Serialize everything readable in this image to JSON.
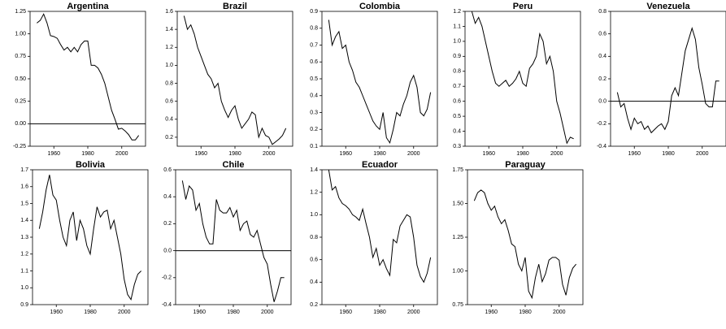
{
  "chart_data": [
    {
      "type": "line",
      "title": "Argentina",
      "x": [
        1950,
        1952,
        1954,
        1956,
        1958,
        1960,
        1962,
        1964,
        1966,
        1968,
        1970,
        1972,
        1974,
        1976,
        1978,
        1980,
        1982,
        1984,
        1986,
        1988,
        1990,
        1992,
        1994,
        1996,
        1998,
        2000,
        2002,
        2004,
        2006,
        2008,
        2010
      ],
      "values": [
        1.12,
        1.15,
        1.22,
        1.12,
        0.98,
        0.97,
        0.95,
        0.88,
        0.82,
        0.85,
        0.8,
        0.85,
        0.8,
        0.88,
        0.92,
        0.92,
        0.65,
        0.65,
        0.62,
        0.55,
        0.45,
        0.3,
        0.15,
        0.05,
        -0.06,
        -0.05,
        -0.08,
        -0.12,
        -0.18,
        -0.18,
        -0.13
      ],
      "xlim": [
        1946,
        2014
      ],
      "xticks": [
        1960,
        1980,
        2000
      ],
      "ylim": [
        -0.25,
        1.25
      ],
      "yticks": [
        -0.25,
        {
          "value": 0,
          "label": "0.00"
        },
        0.25,
        {
          "value": 0.5,
          "label": "0.50"
        },
        0.75,
        {
          "value": 1,
          "label": "1.00"
        },
        1.25
      ],
      "hline": 0,
      "color": "#000000"
    },
    {
      "type": "line",
      "title": "Brazil",
      "x": [
        1950,
        1952,
        1954,
        1956,
        1958,
        1960,
        1962,
        1964,
        1966,
        1968,
        1970,
        1972,
        1974,
        1976,
        1978,
        1980,
        1982,
        1984,
        1986,
        1988,
        1990,
        1992,
        1994,
        1996,
        1998,
        2000,
        2002,
        2004,
        2006,
        2008,
        2010
      ],
      "values": [
        1.55,
        1.4,
        1.45,
        1.35,
        1.2,
        1.1,
        1.0,
        0.9,
        0.85,
        0.75,
        0.8,
        0.6,
        0.5,
        0.42,
        0.5,
        0.55,
        0.4,
        0.3,
        0.35,
        0.4,
        0.48,
        0.45,
        0.2,
        0.3,
        0.22,
        0.2,
        0.12,
        0.15,
        0.18,
        0.22,
        0.3
      ],
      "xlim": [
        1946,
        2014
      ],
      "xticks": [
        1960,
        1980,
        2000
      ],
      "ylim": [
        0.1,
        1.6
      ],
      "yticks": [
        0.2,
        0.4,
        0.6,
        0.8,
        {
          "value": 1,
          "label": "1.0"
        },
        1.2,
        1.4,
        1.6
      ],
      "color": "#000000"
    },
    {
      "type": "line",
      "title": "Colombia",
      "x": [
        1950,
        1952,
        1954,
        1956,
        1958,
        1960,
        1962,
        1964,
        1966,
        1968,
        1970,
        1972,
        1974,
        1976,
        1978,
        1980,
        1982,
        1984,
        1986,
        1988,
        1990,
        1992,
        1994,
        1996,
        1998,
        2000,
        2002,
        2004,
        2006,
        2008,
        2010
      ],
      "values": [
        0.85,
        0.7,
        0.75,
        0.78,
        0.68,
        0.7,
        0.6,
        0.55,
        0.48,
        0.45,
        0.4,
        0.35,
        0.3,
        0.25,
        0.22,
        0.2,
        0.3,
        0.15,
        0.12,
        0.2,
        0.3,
        0.28,
        0.35,
        0.4,
        0.48,
        0.52,
        0.45,
        0.3,
        0.28,
        0.32,
        0.42
      ],
      "xlim": [
        1946,
        2014
      ],
      "xticks": [
        1960,
        1980,
        2000
      ],
      "ylim": [
        0.1,
        0.9
      ],
      "yticks": [
        0.1,
        0.2,
        0.3,
        0.4,
        0.5,
        0.6,
        0.7,
        0.8,
        0.9
      ],
      "color": "#000000"
    },
    {
      "type": "line",
      "title": "Peru",
      "x": [
        1950,
        1952,
        1954,
        1956,
        1958,
        1960,
        1962,
        1964,
        1966,
        1968,
        1970,
        1972,
        1974,
        1976,
        1978,
        1980,
        1982,
        1984,
        1986,
        1988,
        1990,
        1992,
        1994,
        1996,
        1998,
        2000,
        2002,
        2004,
        2006,
        2008,
        2010
      ],
      "values": [
        1.2,
        1.12,
        1.16,
        1.1,
        1.0,
        0.9,
        0.8,
        0.72,
        0.7,
        0.72,
        0.74,
        0.7,
        0.72,
        0.75,
        0.8,
        0.72,
        0.7,
        0.82,
        0.85,
        0.9,
        1.05,
        1.0,
        0.85,
        0.9,
        0.8,
        0.6,
        0.52,
        0.42,
        0.32,
        0.36,
        0.35
      ],
      "xlim": [
        1946,
        2014
      ],
      "xticks": [
        1960,
        1980,
        2000
      ],
      "ylim": [
        0.3,
        1.2
      ],
      "yticks": [
        0.3,
        0.4,
        0.5,
        0.6,
        0.7,
        0.8,
        0.9,
        {
          "value": 1,
          "label": "1.0"
        },
        1.1,
        1.2
      ],
      "color": "#000000"
    },
    {
      "type": "line",
      "title": "Venezuela",
      "x": [
        1950,
        1952,
        1954,
        1956,
        1958,
        1960,
        1962,
        1964,
        1966,
        1968,
        1970,
        1972,
        1974,
        1976,
        1978,
        1980,
        1982,
        1984,
        1986,
        1988,
        1990,
        1992,
        1994,
        1996,
        1998,
        2000,
        2002,
        2004,
        2006,
        2008,
        2010
      ],
      "values": [
        0.08,
        -0.05,
        -0.02,
        -0.15,
        -0.25,
        -0.15,
        -0.2,
        -0.18,
        -0.25,
        -0.22,
        -0.28,
        -0.25,
        -0.22,
        -0.2,
        -0.25,
        -0.18,
        0.05,
        0.12,
        0.05,
        0.25,
        0.45,
        0.55,
        0.65,
        0.55,
        0.3,
        0.15,
        -0.02,
        -0.05,
        -0.05,
        0.18,
        0.18
      ],
      "xlim": [
        1946,
        2014
      ],
      "xticks": [
        1960,
        1980,
        2000
      ],
      "ylim": [
        -0.4,
        0.8
      ],
      "yticks": [
        -0.4,
        -0.2,
        {
          "value": 0,
          "label": "0.0"
        },
        0.2,
        0.4,
        0.6,
        0.8
      ],
      "hline": 0,
      "color": "#000000"
    },
    {
      "type": "line",
      "title": "Bolivia",
      "x": [
        1950,
        1952,
        1954,
        1956,
        1958,
        1960,
        1962,
        1964,
        1966,
        1968,
        1970,
        1972,
        1974,
        1976,
        1978,
        1980,
        1982,
        1984,
        1986,
        1988,
        1990,
        1992,
        1994,
        1996,
        1998,
        2000,
        2002,
        2004,
        2006,
        2008,
        2010
      ],
      "values": [
        1.35,
        1.45,
        1.58,
        1.67,
        1.55,
        1.52,
        1.4,
        1.3,
        1.25,
        1.4,
        1.45,
        1.28,
        1.4,
        1.35,
        1.25,
        1.2,
        1.35,
        1.48,
        1.42,
        1.45,
        1.46,
        1.35,
        1.4,
        1.3,
        1.2,
        1.05,
        0.96,
        0.93,
        1.02,
        1.08,
        1.1
      ],
      "xlim": [
        1946,
        2014
      ],
      "xticks": [
        1960,
        1980,
        2000
      ],
      "ylim": [
        0.9,
        1.7
      ],
      "yticks": [
        0.9,
        {
          "value": 1,
          "label": "1.0"
        },
        1.1,
        1.2,
        1.3,
        1.4,
        1.5,
        1.6,
        1.7
      ],
      "color": "#000000"
    },
    {
      "type": "line",
      "title": "Chile",
      "x": [
        1950,
        1952,
        1954,
        1956,
        1958,
        1960,
        1962,
        1964,
        1966,
        1968,
        1970,
        1972,
        1974,
        1976,
        1978,
        1980,
        1982,
        1984,
        1986,
        1988,
        1990,
        1992,
        1994,
        1996,
        1998,
        2000,
        2002,
        2004,
        2006,
        2008,
        2010
      ],
      "values": [
        0.52,
        0.38,
        0.48,
        0.45,
        0.3,
        0.35,
        0.2,
        0.1,
        0.05,
        0.05,
        0.38,
        0.3,
        0.28,
        0.28,
        0.32,
        0.25,
        0.3,
        0.15,
        0.2,
        0.22,
        0.12,
        0.1,
        0.15,
        0.05,
        -0.05,
        -0.1,
        -0.25,
        -0.38,
        -0.3,
        -0.2,
        -0.2
      ],
      "xlim": [
        1946,
        2014
      ],
      "xticks": [
        1960,
        1980,
        2000
      ],
      "ylim": [
        -0.4,
        0.6
      ],
      "yticks": [
        -0.4,
        -0.2,
        {
          "value": 0,
          "label": "0.0"
        },
        0.2,
        0.4,
        0.6
      ],
      "hline": 0,
      "color": "#000000"
    },
    {
      "type": "line",
      "title": "Ecuador",
      "x": [
        1950,
        1952,
        1954,
        1956,
        1958,
        1960,
        1962,
        1964,
        1966,
        1968,
        1970,
        1972,
        1974,
        1976,
        1978,
        1980,
        1982,
        1984,
        1986,
        1988,
        1990,
        1992,
        1994,
        1996,
        1998,
        2000,
        2002,
        2004,
        2006,
        2008,
        2010
      ],
      "values": [
        1.4,
        1.22,
        1.25,
        1.15,
        1.1,
        1.08,
        1.05,
        1.0,
        0.98,
        0.95,
        1.05,
        0.92,
        0.8,
        0.62,
        0.7,
        0.55,
        0.6,
        0.52,
        0.46,
        0.78,
        0.75,
        0.9,
        0.95,
        1.0,
        0.98,
        0.8,
        0.55,
        0.45,
        0.4,
        0.48,
        0.62
      ],
      "xlim": [
        1946,
        2014
      ],
      "xticks": [
        1960,
        1980,
        2000
      ],
      "ylim": [
        0.2,
        1.4
      ],
      "yticks": [
        0.2,
        0.4,
        0.6,
        0.8,
        {
          "value": 1,
          "label": "1.0"
        },
        1.2,
        1.4
      ],
      "color": "#000000"
    },
    {
      "type": "line",
      "title": "Paraguay",
      "x": [
        1950,
        1952,
        1954,
        1956,
        1958,
        1960,
        1962,
        1964,
        1966,
        1968,
        1970,
        1972,
        1974,
        1976,
        1978,
        1980,
        1982,
        1984,
        1986,
        1988,
        1990,
        1992,
        1994,
        1996,
        1998,
        2000,
        2002,
        2004,
        2006,
        2008,
        2010
      ],
      "values": [
        1.52,
        1.58,
        1.6,
        1.58,
        1.5,
        1.45,
        1.48,
        1.4,
        1.35,
        1.38,
        1.3,
        1.2,
        1.18,
        1.05,
        1.0,
        1.1,
        0.85,
        0.8,
        0.95,
        1.05,
        0.92,
        0.98,
        1.08,
        1.1,
        1.1,
        1.08,
        0.9,
        0.82,
        0.95,
        1.02,
        1.05
      ],
      "xlim": [
        1946,
        2014
      ],
      "xticks": [
        1960,
        1980,
        2000
      ],
      "ylim": [
        0.75,
        1.75
      ],
      "yticks": [
        0.75,
        {
          "value": 1,
          "label": "1.00"
        },
        1.25,
        {
          "value": 1.5,
          "label": "1.50"
        },
        1.75
      ],
      "color": "#000000"
    }
  ]
}
